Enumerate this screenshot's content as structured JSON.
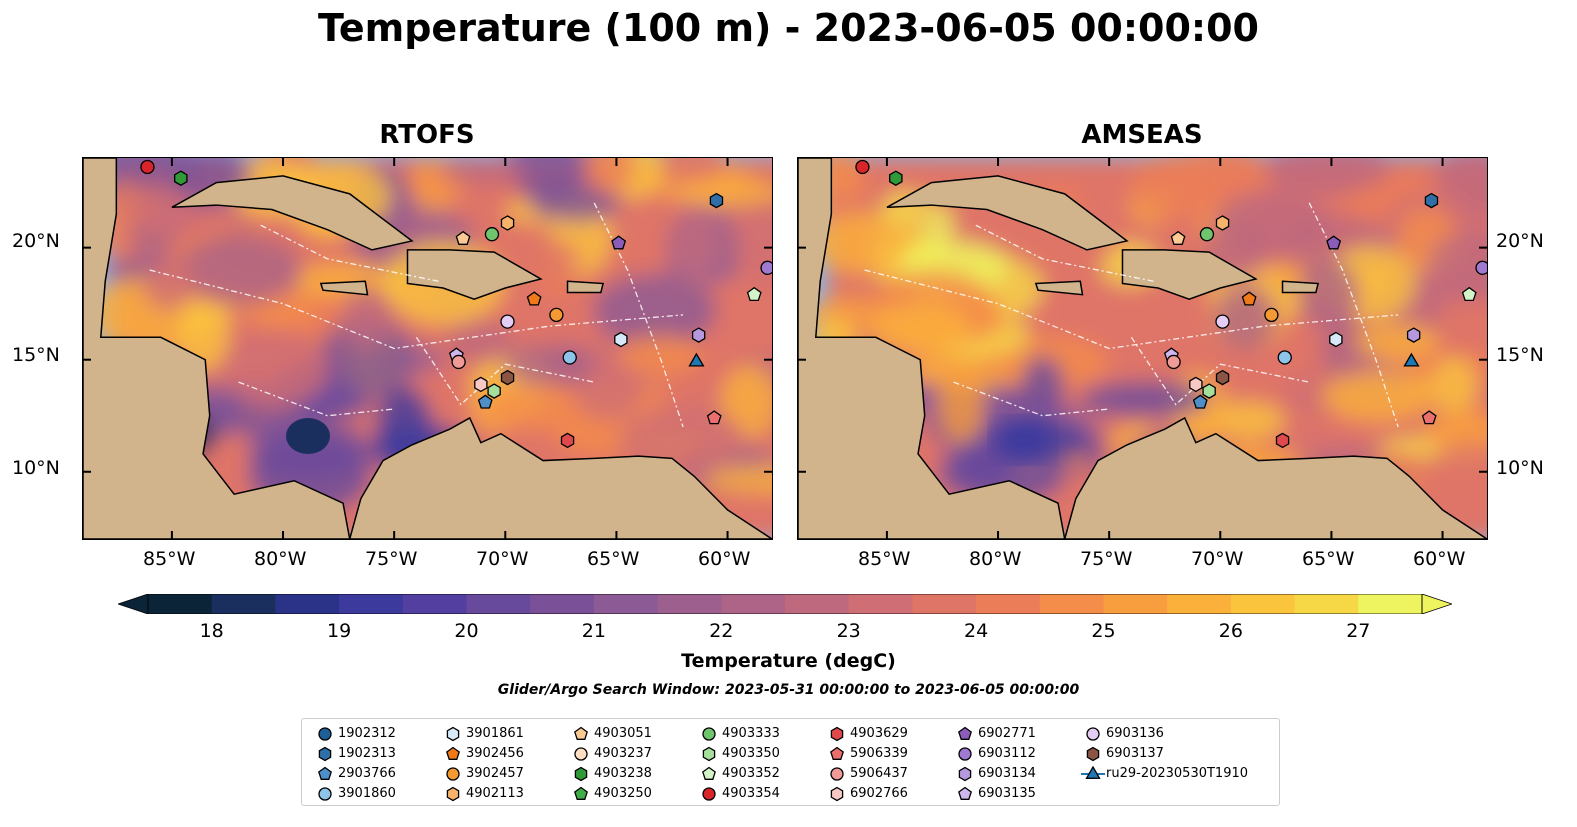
{
  "title": "Temperature (100 m) - 2023-06-05 00:00:00",
  "panels": [
    {
      "title": "RTOFS",
      "variant": "rtofs"
    },
    {
      "title": "AMSEAS",
      "variant": "amseas"
    }
  ],
  "axes": {
    "x_ticks": [
      "85°W",
      "80°W",
      "75°W",
      "70°W",
      "65°W",
      "60°W"
    ],
    "y_ticks": [
      "20°N",
      "15°N",
      "10°N"
    ],
    "lon_range": [
      -89,
      -58
    ],
    "lat_range": [
      7,
      24
    ]
  },
  "colorbar": {
    "label": "Temperature (degC)",
    "ticks": [
      "18",
      "19",
      "20",
      "21",
      "22",
      "23",
      "24",
      "25",
      "26",
      "27"
    ],
    "range": [
      17.5,
      27.5
    ],
    "colors": [
      "#0b2438",
      "#1b2f5e",
      "#2a3388",
      "#3d3a9e",
      "#533f9f",
      "#684a9d",
      "#7a5199",
      "#8c5a95",
      "#9c5f8e",
      "#ad6486",
      "#be697e",
      "#cf6e74",
      "#df7567",
      "#eb7e58",
      "#f48c4a",
      "#f99e3f",
      "#fbb03b",
      "#fbc43d",
      "#f6d847",
      "#eef45f"
    ]
  },
  "search_window": "Glider/Argo Search Window: 2023-05-31 00:00:00 to 2023-06-05 00:00:00",
  "legend": [
    {
      "label": "1902312",
      "marker": "circle",
      "color": "#1f5f99"
    },
    {
      "label": "1902313",
      "marker": "hexagon",
      "color": "#2f6fa8"
    },
    {
      "label": "2903766",
      "marker": "pentagon",
      "color": "#4e8fc7"
    },
    {
      "label": "3901860",
      "marker": "circle",
      "color": "#8ec3ea"
    },
    {
      "label": "3901861",
      "marker": "hexagon",
      "color": "#d6e9f8"
    },
    {
      "label": "3902456",
      "marker": "pentagon",
      "color": "#f07a1a"
    },
    {
      "label": "3902457",
      "marker": "circle",
      "color": "#f59a33"
    },
    {
      "label": "4902113",
      "marker": "hexagon",
      "color": "#f7b36b"
    },
    {
      "label": "4903051",
      "marker": "pentagon",
      "color": "#fbc994"
    },
    {
      "label": "4903237",
      "marker": "circle",
      "color": "#fde0c4"
    },
    {
      "label": "4903238",
      "marker": "hexagon",
      "color": "#2f9a37"
    },
    {
      "label": "4903250",
      "marker": "pentagon",
      "color": "#3fae49"
    },
    {
      "label": "4903333",
      "marker": "circle",
      "color": "#70c46e"
    },
    {
      "label": "4903350",
      "marker": "hexagon",
      "color": "#a6de9c"
    },
    {
      "label": "4903352",
      "marker": "pentagon",
      "color": "#d3f3c9"
    },
    {
      "label": "4903354",
      "marker": "circle",
      "color": "#d9252a"
    },
    {
      "label": "4903629",
      "marker": "hexagon",
      "color": "#e0494c"
    },
    {
      "label": "5906339",
      "marker": "pentagon",
      "color": "#ea7070"
    },
    {
      "label": "5906437",
      "marker": "circle",
      "color": "#f19b98"
    },
    {
      "label": "6902766",
      "marker": "hexagon",
      "color": "#f8c8c4"
    },
    {
      "label": "6902771",
      "marker": "pentagon",
      "color": "#8a5db8"
    },
    {
      "label": "6903112",
      "marker": "circle",
      "color": "#a07ad0"
    },
    {
      "label": "6903134",
      "marker": "hexagon",
      "color": "#b698de"
    },
    {
      "label": "6903135",
      "marker": "pentagon",
      "color": "#cfb6ec"
    },
    {
      "label": "6903136",
      "marker": "circle",
      "color": "#e3cdf5"
    },
    {
      "label": "6903137",
      "marker": "hexagon",
      "color": "#8a5545"
    },
    {
      "label": "ru29-20230530T1910",
      "marker": "triangle-line",
      "color": "#1f77b4"
    }
  ],
  "floats": [
    {
      "id": "4903354",
      "lon": -86.1,
      "lat": 23.6
    },
    {
      "id": "4903238",
      "lon": -84.6,
      "lat": 23.1
    },
    {
      "id": "1902313",
      "lon": -60.5,
      "lat": 22.1
    },
    {
      "id": "6903112",
      "lon": -58.2,
      "lat": 19.1
    },
    {
      "id": "4903352",
      "lon": -58.8,
      "lat": 17.9
    },
    {
      "id": "4903051",
      "lon": -71.9,
      "lat": 20.4
    },
    {
      "id": "4903333",
      "lon": -70.6,
      "lat": 20.6
    },
    {
      "id": "4902113",
      "lon": -69.9,
      "lat": 21.1
    },
    {
      "id": "6902771",
      "lon": -64.9,
      "lat": 20.2
    },
    {
      "id": "3902456",
      "lon": -68.7,
      "lat": 17.7
    },
    {
      "id": "3902457",
      "lon": -67.7,
      "lat": 17.0
    },
    {
      "id": "6903136",
      "lon": -69.9,
      "lat": 16.7
    },
    {
      "id": "3901861",
      "lon": -64.8,
      "lat": 15.9
    },
    {
      "id": "3901860",
      "lon": -67.1,
      "lat": 15.1
    },
    {
      "id": "6903135",
      "lon": -72.2,
      "lat": 15.2
    },
    {
      "id": "5906437",
      "lon": -72.1,
      "lat": 14.9
    },
    {
      "id": "6902766",
      "lon": -71.1,
      "lat": 13.9
    },
    {
      "id": "4903350",
      "lon": -70.5,
      "lat": 13.6
    },
    {
      "id": "6903137",
      "lon": -69.9,
      "lat": 14.2
    },
    {
      "id": "2903766",
      "lon": -70.9,
      "lat": 13.1
    },
    {
      "id": "4903629",
      "lon": -67.2,
      "lat": 11.4
    },
    {
      "id": "5906339",
      "lon": -60.6,
      "lat": 12.4
    },
    {
      "id": "6903134",
      "lon": -61.3,
      "lat": 16.1
    },
    {
      "id": "ru29-20230530T1910",
      "lon": -61.4,
      "lat": 14.9
    }
  ]
}
